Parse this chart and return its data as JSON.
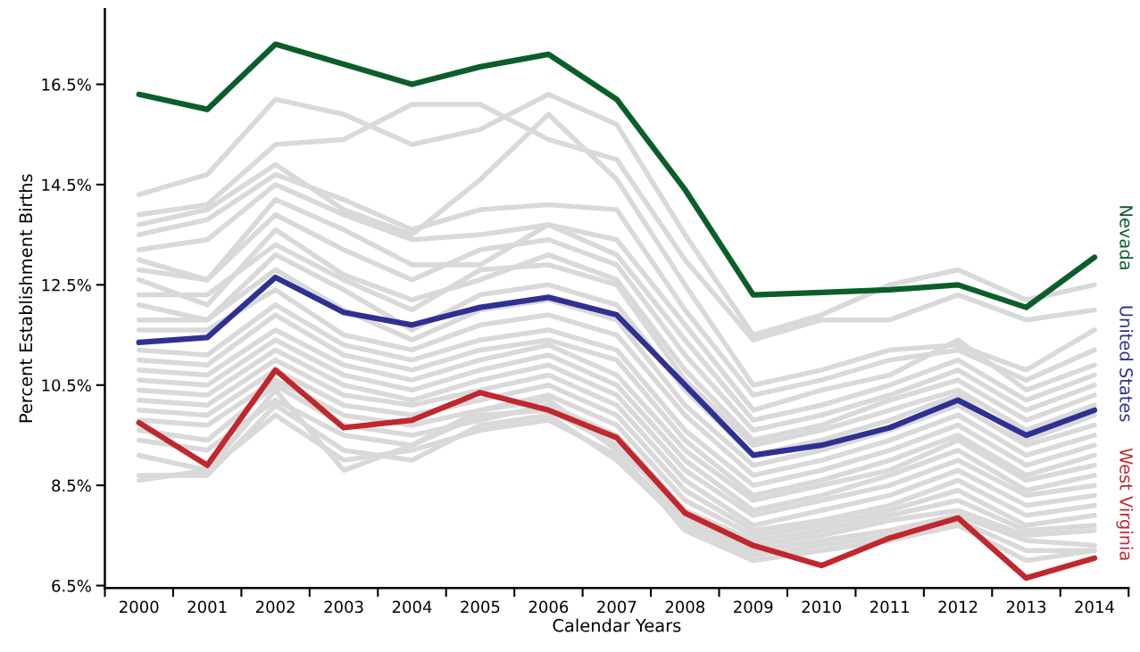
{
  "chart_data": {
    "type": "line",
    "xlabel": "Calendar Years",
    "ylabel": "Percent Establishment Births",
    "categories": [
      "2000",
      "2001",
      "2002",
      "2003",
      "2004",
      "2005",
      "2006",
      "2007",
      "2008",
      "2009",
      "2010",
      "2011",
      "2012",
      "2013",
      "2014"
    ],
    "ylim": [
      6.45,
      18
    ],
    "yticks": [
      {
        "value": 6.5,
        "label": "6.5%"
      },
      {
        "value": 8.5,
        "label": "8.5%"
      },
      {
        "value": 10.5,
        "label": "10.5%"
      },
      {
        "value": 12.5,
        "label": "12.5%"
      },
      {
        "value": 14.5,
        "label": "14.5%"
      },
      {
        "value": 16.5,
        "label": "16.5%"
      }
    ],
    "grid": false,
    "legend": false,
    "marker": "none",
    "line_style": "solid",
    "series": [
      {
        "color": "#d9d9d9",
        "values": [
          14.3,
          14.7,
          16.2,
          15.9,
          15.3,
          15.6,
          16.3,
          15.7,
          13.5,
          11.5,
          11.9,
          12.5,
          12.8,
          12.2,
          12.5
        ]
      },
      {
        "color": "#d9d9d9",
        "values": [
          13.9,
          14.1,
          15.3,
          15.4,
          16.1,
          16.1,
          15.4,
          15.0,
          13.0,
          11.4,
          11.8,
          11.8,
          12.3,
          11.8,
          12.0
        ]
      },
      {
        "color": "#d9d9d9",
        "values": [
          13.7,
          14.0,
          14.9,
          14.0,
          13.5,
          14.6,
          15.9,
          14.6,
          12.5,
          10.5,
          10.8,
          11.2,
          11.3,
          10.8,
          11.6
        ]
      },
      {
        "color": "#d9d9d9",
        "values": [
          13.5,
          13.8,
          14.7,
          14.2,
          13.6,
          14.0,
          14.1,
          14.0,
          12.0,
          10.3,
          10.6,
          11.0,
          11.2,
          10.6,
          11.2
        ]
      },
      {
        "color": "#d9d9d9",
        "values": [
          13.2,
          13.4,
          14.5,
          13.9,
          13.4,
          13.5,
          13.7,
          13.4,
          11.7,
          10.0,
          10.4,
          10.7,
          11.4,
          10.4,
          10.9
        ]
      },
      {
        "color": "#d9d9d9",
        "values": [
          13.0,
          12.6,
          14.2,
          13.6,
          12.9,
          12.9,
          13.7,
          13.1,
          11.4,
          9.8,
          10.1,
          10.5,
          11.0,
          10.2,
          10.7
        ]
      },
      {
        "color": "#d9d9d9",
        "values": [
          12.8,
          12.6,
          13.9,
          13.2,
          12.6,
          13.2,
          13.4,
          12.9,
          11.1,
          9.6,
          9.9,
          10.3,
          10.8,
          10.0,
          10.5
        ]
      },
      {
        "color": "#d9d9d9",
        "values": [
          12.6,
          12.1,
          13.6,
          12.7,
          12.2,
          12.6,
          13.1,
          12.6,
          10.8,
          9.4,
          9.7,
          10.2,
          10.6,
          9.8,
          10.3
        ]
      },
      {
        "color": "#d9d9d9",
        "values": [
          12.3,
          12.3,
          13.3,
          12.6,
          12.0,
          12.8,
          12.9,
          12.5,
          10.6,
          9.3,
          9.6,
          10.0,
          10.4,
          9.6,
          10.1
        ]
      },
      {
        "color": "#d9d9d9",
        "values": [
          12.1,
          11.8,
          13.1,
          12.4,
          11.6,
          12.3,
          12.5,
          12.1,
          10.4,
          9.1,
          9.4,
          9.8,
          10.3,
          9.4,
          9.9
        ]
      },
      {
        "color": "#d9d9d9",
        "values": [
          11.8,
          11.8,
          12.8,
          12.0,
          11.4,
          12.0,
          12.2,
          11.8,
          10.1,
          8.9,
          9.2,
          9.6,
          10.1,
          9.3,
          9.7
        ]
      },
      {
        "color": "#d9d9d9",
        "values": [
          11.6,
          11.6,
          12.4,
          11.5,
          11.2,
          11.7,
          11.9,
          11.5,
          9.9,
          8.7,
          9.0,
          9.4,
          9.9,
          9.1,
          9.5
        ]
      },
      {
        "color": "#d9d9d9",
        "values": [
          11.2,
          11.1,
          12.1,
          11.3,
          11.0,
          11.4,
          11.6,
          11.2,
          9.6,
          8.5,
          8.8,
          9.2,
          9.7,
          8.9,
          9.3
        ]
      },
      {
        "color": "#d9d9d9",
        "values": [
          11.0,
          10.9,
          11.9,
          11.1,
          10.8,
          11.2,
          11.4,
          11.0,
          9.4,
          8.3,
          8.6,
          9.0,
          9.5,
          8.7,
          9.1
        ]
      },
      {
        "color": "#d9d9d9",
        "values": [
          10.8,
          10.7,
          11.6,
          10.9,
          10.6,
          11.0,
          11.3,
          10.7,
          9.2,
          8.2,
          8.5,
          8.8,
          9.4,
          8.6,
          8.9
        ]
      },
      {
        "color": "#d9d9d9",
        "values": [
          10.6,
          10.5,
          11.4,
          10.7,
          10.4,
          10.8,
          11.1,
          10.5,
          9.0,
          8.0,
          8.3,
          8.7,
          9.2,
          8.4,
          8.7
        ]
      },
      {
        "color": "#d9d9d9",
        "values": [
          10.4,
          10.3,
          11.2,
          10.5,
          10.2,
          10.6,
          10.9,
          10.3,
          8.8,
          7.9,
          8.2,
          8.5,
          9.0,
          8.3,
          8.5
        ]
      },
      {
        "color": "#d9d9d9",
        "values": [
          10.2,
          10.1,
          11.0,
          10.3,
          10.1,
          10.4,
          10.7,
          10.1,
          8.6,
          7.7,
          8.0,
          8.3,
          8.8,
          8.1,
          8.3
        ]
      },
      {
        "color": "#d9d9d9",
        "values": [
          10.0,
          9.9,
          10.8,
          10.1,
          9.9,
          10.2,
          10.5,
          9.9,
          8.4,
          7.6,
          7.8,
          8.1,
          8.6,
          7.9,
          8.1
        ]
      },
      {
        "color": "#d9d9d9",
        "values": [
          9.8,
          9.7,
          10.6,
          9.9,
          9.7,
          10.0,
          10.3,
          9.7,
          8.2,
          7.5,
          7.7,
          8.0,
          8.4,
          7.7,
          7.9
        ]
      },
      {
        "color": "#d9d9d9",
        "values": [
          9.6,
          9.4,
          10.5,
          9.7,
          9.5,
          9.8,
          10.1,
          9.5,
          8.0,
          7.4,
          7.6,
          7.9,
          8.2,
          7.6,
          7.7
        ]
      },
      {
        "color": "#d9d9d9",
        "values": [
          9.4,
          9.2,
          10.2,
          9.5,
          9.3,
          9.9,
          10.0,
          9.3,
          7.9,
          7.3,
          7.5,
          7.8,
          8.0,
          7.5,
          7.6
        ]
      },
      {
        "color": "#d9d9d9",
        "values": [
          9.1,
          8.8,
          9.9,
          9.0,
          9.2,
          9.6,
          9.8,
          9.1,
          7.8,
          7.2,
          7.4,
          7.6,
          7.9,
          7.4,
          7.3
        ]
      },
      {
        "color": "#d9d9d9",
        "values": [
          8.7,
          8.7,
          10.1,
          9.2,
          9.0,
          9.7,
          9.9,
          9.0,
          7.7,
          7.1,
          7.3,
          7.5,
          7.8,
          7.2,
          7.2
        ]
      },
      {
        "color": "#d9d9d9",
        "values": [
          8.6,
          8.8,
          10.4,
          8.8,
          9.3,
          10.0,
          10.2,
          9.2,
          7.6,
          7.0,
          7.2,
          7.4,
          7.7,
          7.0,
          7.2
        ]
      },
      {
        "name": "Nevada",
        "color": "#0b5e2a",
        "values": [
          16.3,
          16.0,
          17.3,
          16.9,
          16.5,
          16.85,
          17.1,
          16.2,
          14.4,
          12.3,
          12.35,
          12.4,
          12.5,
          12.05,
          13.05
        ]
      },
      {
        "name": "United States",
        "color": "#2e3192",
        "values": [
          11.35,
          11.45,
          12.65,
          11.95,
          11.7,
          12.05,
          12.25,
          11.9,
          10.5,
          9.1,
          9.3,
          9.65,
          10.2,
          9.5,
          10.0
        ]
      },
      {
        "name": "West Virginia",
        "color": "#c1272d",
        "values": [
          9.75,
          8.9,
          10.8,
          9.65,
          9.8,
          10.35,
          10.0,
          9.45,
          7.95,
          7.3,
          6.9,
          7.45,
          7.85,
          6.65,
          7.05
        ]
      }
    ]
  }
}
